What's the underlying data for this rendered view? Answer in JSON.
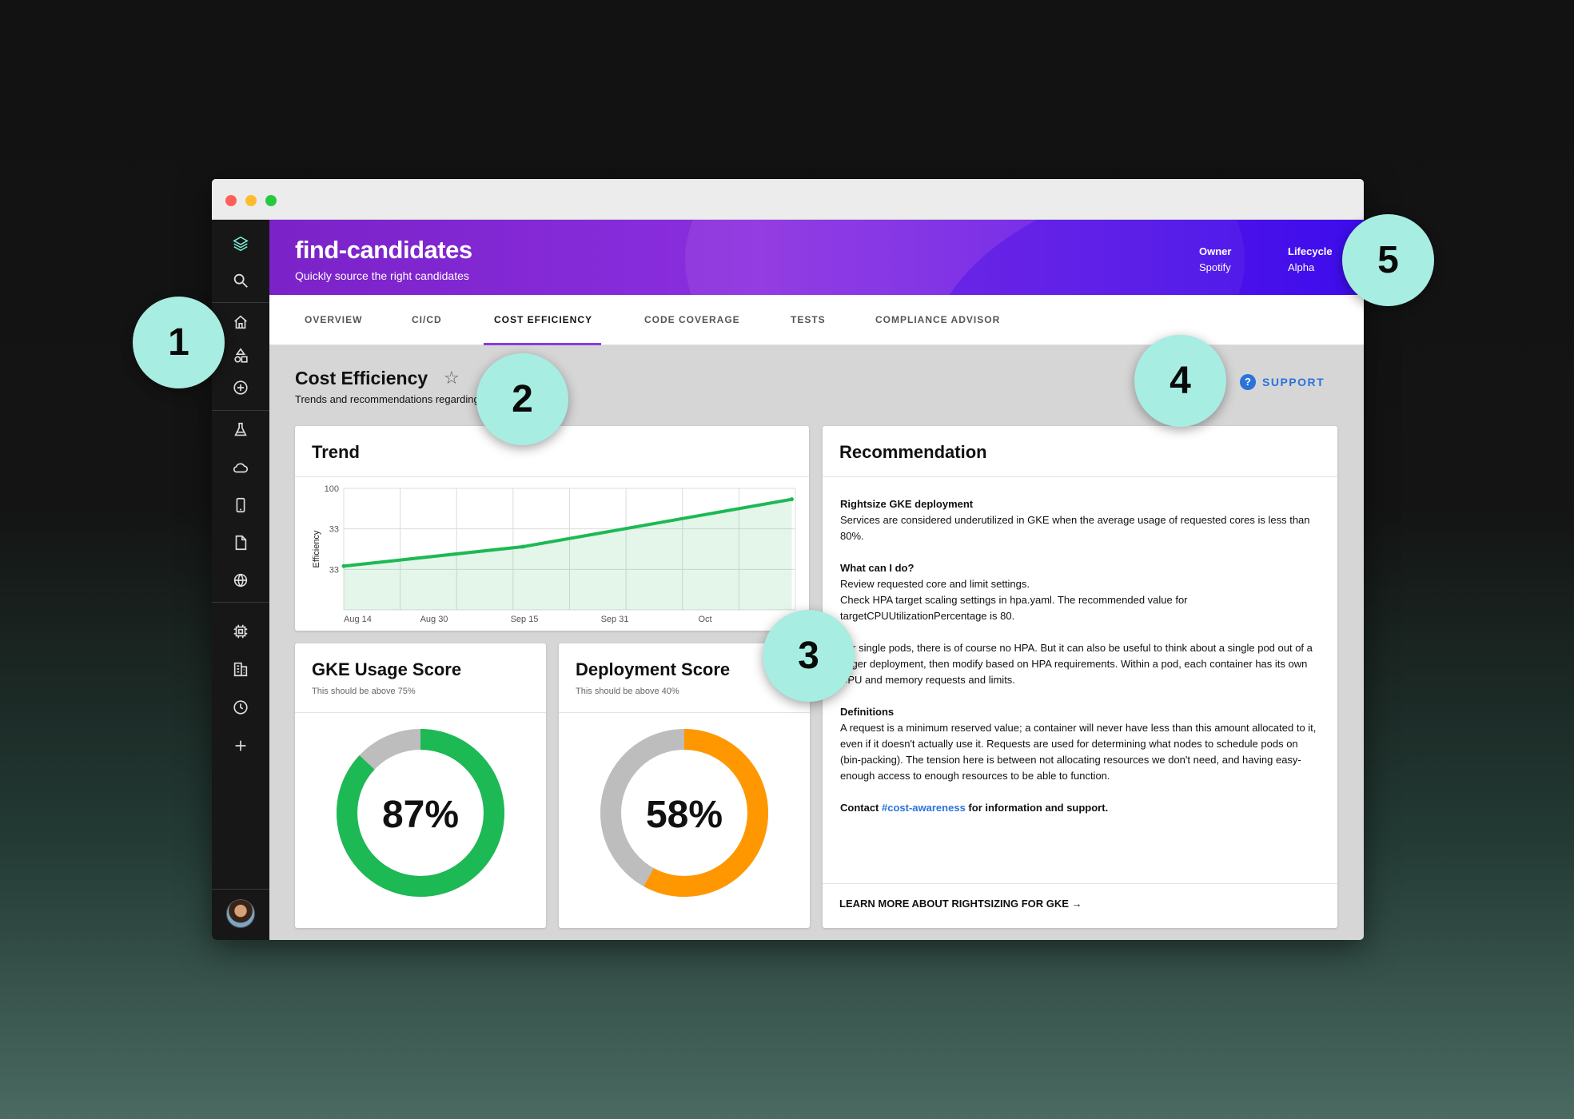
{
  "header": {
    "title": "find-candidates",
    "subtitle": "Quickly source the right candidates",
    "owner_label": "Owner",
    "owner_value": "Spotify",
    "lifecycle_label": "Lifecycle",
    "lifecycle_value": "Alpha"
  },
  "tabs": [
    {
      "label": "OVERVIEW"
    },
    {
      "label": "CI/CD"
    },
    {
      "label": "COST EFFICIENCY",
      "active": true
    },
    {
      "label": "CODE COVERAGE"
    },
    {
      "label": "TESTS"
    },
    {
      "label": "COMPLIANCE ADVISOR"
    }
  ],
  "page": {
    "title": "Cost Efficiency",
    "subtitle": "Trends and recommendations regarding cost efficiency",
    "support_label": "SUPPORT"
  },
  "trend": {
    "title": "Trend"
  },
  "chart_data": {
    "type": "area",
    "ylabel": "Efficiency",
    "y_tick_labels": [
      "100",
      "33",
      "33"
    ],
    "x_tick_labels": [
      "Aug 14",
      "Aug 30",
      "Sep 15",
      "Sep 31",
      "Oct"
    ],
    "x": [
      "Aug 14",
      "Sep 15",
      "Oct"
    ],
    "values": [
      36,
      52,
      91
    ],
    "ylim": [
      0,
      100
    ],
    "grid": true,
    "color": "#1db954"
  },
  "gke": {
    "title": "GKE Usage Score",
    "subtitle": "This should be above 75%",
    "value": "87%",
    "fraction": 0.87,
    "color": "#1db954"
  },
  "deployment": {
    "title": "Deployment Score",
    "subtitle": "This should be above 40%",
    "value": "58%",
    "fraction": 0.58,
    "color": "#ff9800"
  },
  "recommendation": {
    "title": "Recommendation",
    "s1_heading": "Rightsize GKE deployment",
    "s1_text": "Services are considered underutilized in GKE when the average usage of requested cores is less than 80%.",
    "s2_heading": "What can I do?",
    "s2_line1": "Review requested core and limit settings.",
    "s2_line2": "Check HPA target scaling settings in hpa.yaml. The recommended value for targetCPUUtilizationPercentage is 80.",
    "s3_text": "For single pods, there is of course no HPA. But it can also be useful to think about a single pod out of a larger deployment, then modify based on HPA requirements. Within a pod, each container has its own CPU and memory requests and limits.",
    "s4_heading": "Definitions",
    "s4_text": "A request is a minimum reserved value; a container will never have less than this amount allocated to it, even if it doesn't actually use it. Requests are used for determining what nodes to schedule pods on (bin-packing). The tension here is between not allocating resources we don't need, and having easy-enough access to enough resources to be able to function.",
    "contact_prefix": "Contact",
    "contact_link": "#cost-awareness",
    "contact_suffix": "for information and support.",
    "learn_more": "LEARN MORE ABOUT RIGHTSIZING FOR GKE →"
  },
  "badges": [
    "1",
    "2",
    "3",
    "4",
    "5"
  ],
  "colors": {
    "accent": "#8d3be3",
    "badge": "#a7ede2",
    "sidebar_active": "#7df3e1",
    "link": "#2b73d9"
  }
}
